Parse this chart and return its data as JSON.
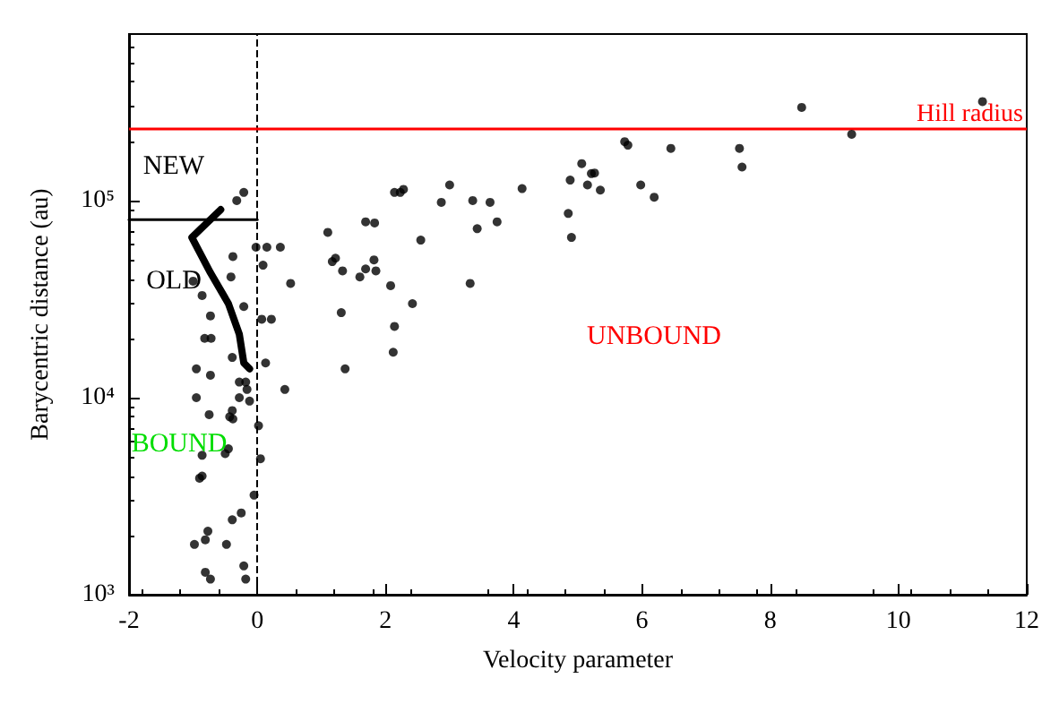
{
  "chart_data": {
    "type": "scatter",
    "xlabel": "Velocity parameter",
    "ylabel": "Barycentric distance (au)",
    "xlim": [
      -2,
      12
    ],
    "xticks": [
      -2,
      0,
      2,
      4,
      6,
      8,
      10,
      12
    ],
    "ylim": [
      1000,
      700000
    ],
    "yticks": [
      {
        "value": 1000,
        "label": "10³"
      },
      {
        "value": 10000,
        "label": "10⁴"
      },
      {
        "value": 100000,
        "label": "10⁵"
      }
    ],
    "log": "y",
    "grid": false,
    "marker": "circle",
    "series": [
      {
        "color": "#000000",
        "x": [
          -0.21,
          -0.32,
          -0.02,
          0.15,
          0.36,
          -0.38,
          0.09,
          -0.41,
          0.52,
          -1.0,
          -0.86,
          -0.21,
          -0.73,
          0.07,
          0.22,
          -0.82,
          -0.72,
          -0.39,
          0.13,
          -0.95,
          -0.73,
          -0.28,
          -0.18,
          -0.16,
          0.43,
          -0.95,
          -0.28,
          -0.12,
          -0.39,
          -0.43,
          -0.75,
          -0.38,
          0.02,
          -0.5,
          -0.45,
          -0.86,
          0.05,
          -0.86,
          -0.9,
          -0.05,
          -0.25,
          -0.39,
          -0.77,
          -0.81,
          -0.98,
          -0.48,
          -0.21,
          -0.81,
          -0.73,
          -0.18,
          1.1,
          1.17,
          1.22,
          1.33,
          1.31,
          1.37,
          1.6,
          1.69,
          1.69,
          1.83,
          1.82,
          1.85,
          2.08,
          2.14,
          2.12,
          2.14,
          2.23,
          2.28,
          2.42,
          2.55,
          2.87,
          3.0,
          3.32,
          3.36,
          3.43,
          3.63,
          3.74,
          4.13,
          4.88,
          4.85,
          4.9,
          5.06,
          5.15,
          5.21,
          5.26,
          5.35,
          5.73,
          5.78,
          5.98,
          6.19,
          6.45,
          7.52,
          7.56,
          8.49,
          9.27,
          11.31
        ],
        "values": [
          110000,
          100000,
          58000,
          58000,
          58000,
          52000,
          47000,
          41000,
          38000,
          39000,
          33000,
          29000,
          26000,
          25000,
          25000,
          20000,
          20000,
          16000,
          15000,
          14000,
          13000,
          12000,
          12000,
          11000,
          11000,
          10000,
          10000,
          9600,
          8600,
          8000,
          8200,
          7800,
          7200,
          5200,
          5500,
          5100,
          4900,
          4000,
          3900,
          3200,
          2600,
          2400,
          2100,
          1900,
          1800,
          1800,
          1400,
          1300,
          1200,
          1200,
          69000,
          49000,
          51000,
          44000,
          27000,
          14000,
          41000,
          45000,
          78000,
          77000,
          50000,
          44000,
          37000,
          23000,
          17000,
          110000,
          110000,
          114000,
          30000,
          63000,
          98000,
          120000,
          38000,
          100000,
          72000,
          98000,
          78000,
          115000,
          127000,
          86000,
          65000,
          154000,
          120000,
          137000,
          138000,
          113000,
          199000,
          191000,
          120000,
          104000,
          184000,
          184000,
          148000,
          297000,
          217000,
          318000
        ]
      },
      {
        "type": "line",
        "color": "#000000",
        "marker": "none",
        "line_style": "solid",
        "x": [
          -0.57,
          -1.02,
          -0.73,
          -0.45,
          -0.28,
          -0.21,
          -0.12
        ],
        "values": [
          90000,
          65000,
          43000,
          30000,
          21000,
          15000,
          14000
        ]
      },
      {
        "type": "line",
        "color": "#000000",
        "marker": "none",
        "line_style": "solid",
        "x": [
          -2,
          0
        ],
        "values": [
          80000,
          80000
        ]
      }
    ],
    "ref_lines": [
      {
        "axis": "x",
        "value": 0,
        "color": "#000000",
        "line_style": "dashed"
      },
      {
        "axis": "y",
        "value": 230000,
        "label": "Hill radius",
        "color": "#ff0000",
        "line_style": "solid"
      }
    ],
    "annotations": [
      "NEW",
      "OLD",
      "BOUND",
      "UNBOUND"
    ]
  }
}
